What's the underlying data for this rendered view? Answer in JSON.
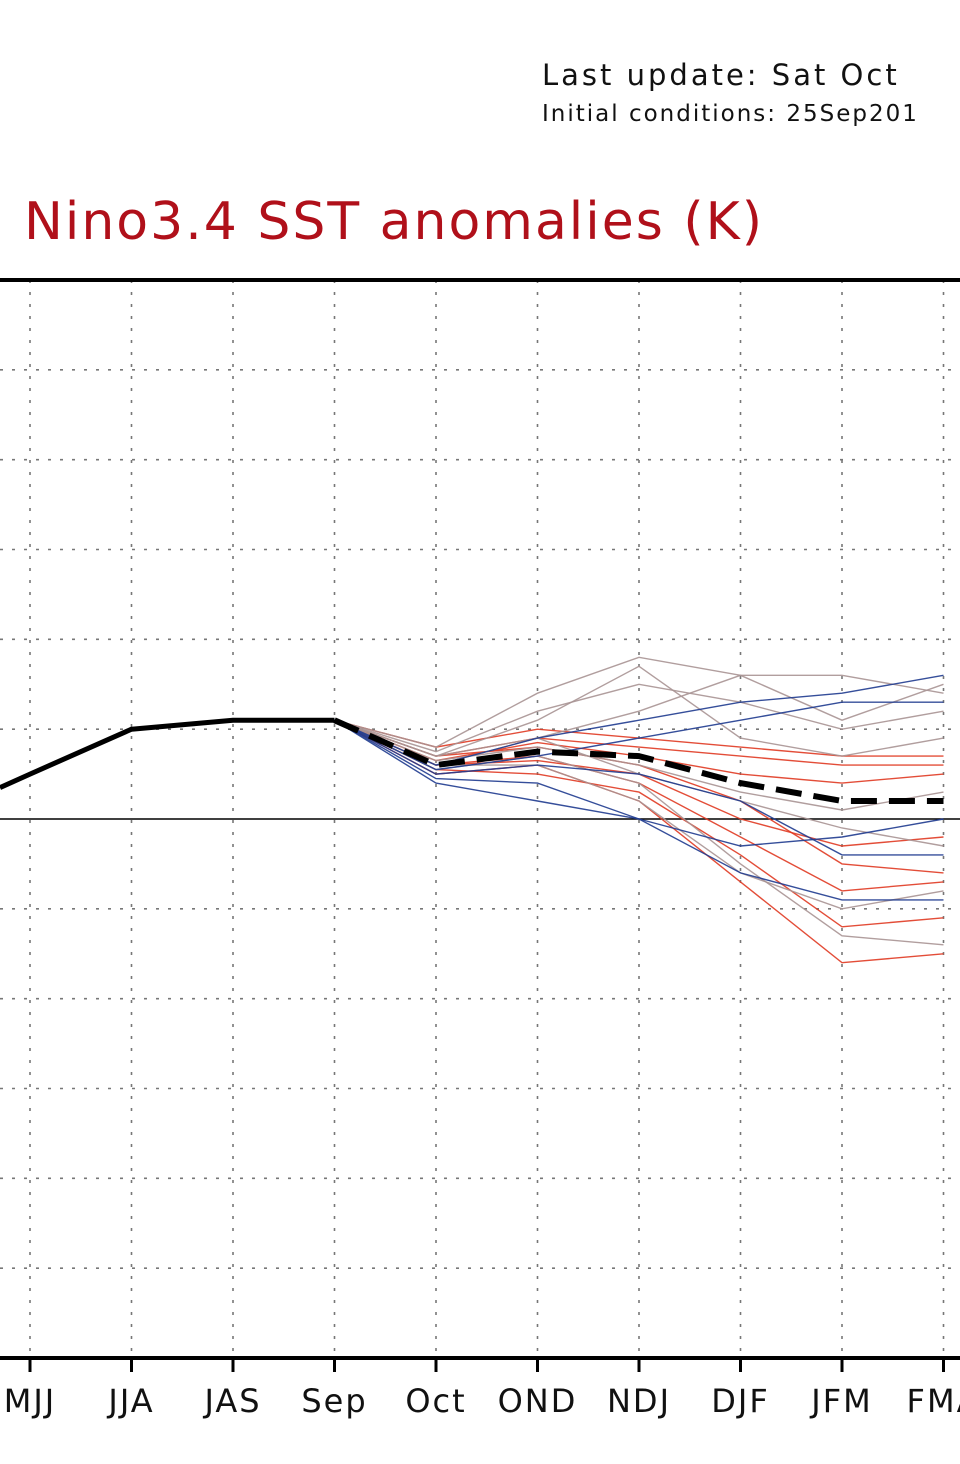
{
  "header": {
    "last_update": "Last update: Sat Oct",
    "initial_conditions": "Initial conditions: 25Sep201"
  },
  "colors": {
    "title": "#b0101a",
    "mean": "#000000",
    "member_red": "#e03a22",
    "member_grey": "#a89494",
    "member_blue": "#1f3b8f"
  },
  "chart_data": {
    "type": "line",
    "title": "Nino3.4 SST anomalies (K)",
    "categories": [
      "MJJ",
      "JJA",
      "JAS",
      "Sep",
      "Oct",
      "OND",
      "NDJ",
      "DJF",
      "JFM",
      "FMA"
    ],
    "ylim": [
      -6,
      6
    ],
    "grid": true,
    "observed": {
      "x": [
        "MJJ",
        "JJA",
        "JAS",
        "Sep"
      ],
      "values": [
        0.5,
        1.0,
        1.1,
        1.1
      ]
    },
    "forecast_mean": {
      "x": [
        "Sep",
        "Oct",
        "OND",
        "NDJ",
        "DJF",
        "JFM",
        "FMA"
      ],
      "values": [
        1.1,
        0.6,
        0.75,
        0.7,
        0.4,
        0.2,
        0.2
      ]
    },
    "members": [
      {
        "color": "red",
        "values": [
          1.1,
          0.7,
          0.8,
          0.6,
          0.2,
          -0.5,
          -0.6
        ]
      },
      {
        "color": "red",
        "values": [
          1.1,
          0.6,
          0.7,
          0.4,
          -0.2,
          -0.8,
          -0.7
        ]
      },
      {
        "color": "red",
        "values": [
          1.1,
          0.5,
          0.6,
          0.2,
          -0.7,
          -1.6,
          -1.5
        ]
      },
      {
        "color": "red",
        "values": [
          1.1,
          0.7,
          0.9,
          0.8,
          0.7,
          0.6,
          0.6
        ]
      },
      {
        "color": "red",
        "values": [
          1.1,
          0.8,
          1.0,
          0.9,
          0.8,
          0.7,
          0.7
        ]
      },
      {
        "color": "red",
        "values": [
          1.1,
          0.6,
          0.65,
          0.5,
          0.0,
          -0.3,
          -0.2
        ]
      },
      {
        "color": "red",
        "values": [
          1.1,
          0.55,
          0.5,
          0.3,
          -0.4,
          -1.2,
          -1.1
        ]
      },
      {
        "color": "red",
        "values": [
          1.1,
          0.65,
          0.85,
          0.7,
          0.5,
          0.4,
          0.5
        ]
      },
      {
        "color": "grey",
        "values": [
          1.1,
          0.8,
          1.4,
          1.8,
          1.6,
          1.6,
          1.4
        ]
      },
      {
        "color": "grey",
        "values": [
          1.1,
          0.75,
          1.2,
          1.5,
          1.3,
          1.0,
          1.2
        ]
      },
      {
        "color": "grey",
        "values": [
          1.1,
          0.7,
          1.1,
          1.7,
          0.9,
          0.7,
          0.9
        ]
      },
      {
        "color": "grey",
        "values": [
          1.1,
          0.6,
          0.9,
          1.2,
          1.6,
          1.1,
          1.5
        ]
      },
      {
        "color": "grey",
        "values": [
          1.1,
          0.65,
          0.8,
          0.6,
          0.3,
          0.1,
          0.3
        ]
      },
      {
        "color": "grey",
        "values": [
          1.1,
          0.55,
          0.7,
          0.4,
          -0.5,
          -1.3,
          -1.4
        ]
      },
      {
        "color": "grey",
        "values": [
          1.1,
          0.6,
          0.6,
          0.2,
          -0.6,
          -1.0,
          -0.8
        ]
      },
      {
        "color": "grey",
        "values": [
          1.1,
          0.7,
          0.9,
          0.5,
          0.2,
          -0.1,
          -0.3
        ]
      },
      {
        "color": "blue",
        "values": [
          1.1,
          0.4,
          0.2,
          0.0,
          -0.6,
          -0.9,
          -0.9
        ]
      },
      {
        "color": "blue",
        "values": [
          1.1,
          0.5,
          0.6,
          0.5,
          0.2,
          -0.4,
          -0.4
        ]
      },
      {
        "color": "blue",
        "values": [
          1.1,
          0.6,
          0.9,
          1.1,
          1.3,
          1.4,
          1.6
        ]
      },
      {
        "color": "blue",
        "values": [
          1.1,
          0.45,
          0.4,
          0.0,
          -0.3,
          -0.2,
          0.0
        ]
      },
      {
        "color": "blue",
        "values": [
          1.1,
          0.55,
          0.7,
          0.9,
          1.1,
          1.3,
          1.3
        ]
      }
    ]
  }
}
